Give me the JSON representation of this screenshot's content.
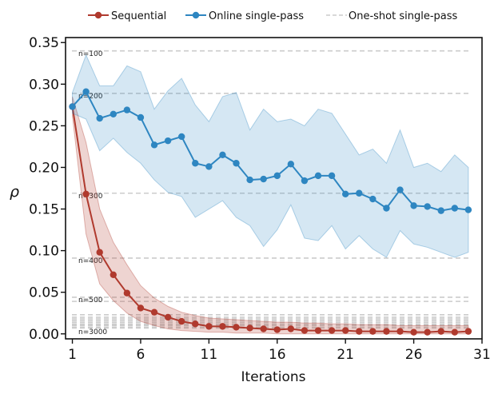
{
  "chart_data": {
    "type": "line",
    "xlabel": "Iterations",
    "ylabel": "ρ",
    "xlim": [
      0.5,
      31
    ],
    "ylim": [
      -0.006,
      0.356
    ],
    "xticks": [
      1,
      6,
      11,
      16,
      21,
      26,
      31
    ],
    "yticks": [
      0.0,
      0.05,
      0.1,
      0.15,
      0.2,
      0.25,
      0.3,
      0.35
    ],
    "ytick_labels": [
      "0.00",
      "0.05",
      "0.10",
      "0.15",
      "0.20",
      "0.25",
      "0.30",
      "0.35"
    ],
    "x": [
      1,
      2,
      3,
      4,
      5,
      6,
      7,
      8,
      9,
      10,
      11,
      12,
      13,
      14,
      15,
      16,
      17,
      18,
      19,
      20,
      21,
      22,
      23,
      24,
      25,
      26,
      27,
      28,
      29,
      30
    ],
    "series": [
      {
        "name": "Sequential",
        "color": "#b03a2e",
        "marker": "circle",
        "values": [
          0.273,
          0.168,
          0.098,
          0.071,
          0.049,
          0.031,
          0.026,
          0.02,
          0.015,
          0.012,
          0.009,
          0.009,
          0.008,
          0.007,
          0.006,
          0.005,
          0.006,
          0.004,
          0.004,
          0.004,
          0.004,
          0.003,
          0.003,
          0.003,
          0.003,
          0.002,
          0.002,
          0.003,
          0.002,
          0.003
        ],
        "upper": [
          0.285,
          0.23,
          0.15,
          0.11,
          0.083,
          0.058,
          0.043,
          0.033,
          0.026,
          0.022,
          0.019,
          0.018,
          0.017,
          0.016,
          0.015,
          0.014,
          0.014,
          0.013,
          0.013,
          0.012,
          0.012,
          0.011,
          0.011,
          0.011,
          0.01,
          0.01,
          0.01,
          0.01,
          0.01,
          0.01
        ],
        "lower": [
          0.262,
          0.12,
          0.06,
          0.04,
          0.025,
          0.015,
          0.01,
          0.006,
          0.004,
          0.003,
          0.002,
          0.002,
          0.001,
          0.001,
          0.001,
          0.0,
          0.0,
          0.0,
          0.0,
          0.0,
          0.0,
          0.0,
          0.0,
          0.0,
          0.0,
          0.0,
          0.0,
          0.0,
          0.0,
          0.0
        ]
      },
      {
        "name": "Online single-pass",
        "color": "#2e86c1",
        "marker": "circle",
        "values": [
          0.273,
          0.291,
          0.259,
          0.264,
          0.269,
          0.26,
          0.227,
          0.232,
          0.237,
          0.205,
          0.201,
          0.215,
          0.205,
          0.185,
          0.186,
          0.19,
          0.204,
          0.184,
          0.19,
          0.19,
          0.168,
          0.169,
          0.162,
          0.151,
          0.173,
          0.154,
          0.153,
          0.148,
          0.151,
          0.149
        ],
        "upper": [
          0.29,
          0.335,
          0.298,
          0.298,
          0.322,
          0.315,
          0.27,
          0.292,
          0.307,
          0.275,
          0.255,
          0.285,
          0.29,
          0.245,
          0.27,
          0.255,
          0.258,
          0.25,
          0.27,
          0.265,
          0.24,
          0.215,
          0.222,
          0.205,
          0.245,
          0.2,
          0.205,
          0.195,
          0.215,
          0.2
        ],
        "lower": [
          0.265,
          0.258,
          0.22,
          0.235,
          0.218,
          0.205,
          0.185,
          0.17,
          0.165,
          0.14,
          0.15,
          0.16,
          0.14,
          0.13,
          0.105,
          0.125,
          0.155,
          0.115,
          0.112,
          0.13,
          0.102,
          0.118,
          0.102,
          0.092,
          0.124,
          0.108,
          0.104,
          0.098,
          0.092,
          0.098
        ]
      }
    ],
    "reference_lines": {
      "name": "One-shot single-pass",
      "color": "#cccccc",
      "style": "dashed",
      "values": [
        0.34,
        0.289,
        0.169,
        0.091,
        0.044,
        0.039,
        0.023,
        0.02,
        0.018,
        0.016,
        0.014,
        0.012,
        0.011,
        0.01,
        0.008,
        0.007
      ],
      "labels": [
        {
          "text": "n=100",
          "y": 0.334
        },
        {
          "text": "n=200",
          "y": 0.283
        },
        {
          "text": "n=300",
          "y": 0.163
        },
        {
          "text": "n=400",
          "y": 0.085
        },
        {
          "text": "n=500",
          "y": 0.038
        },
        {
          "text": "n=3000",
          "y": 0.0
        }
      ]
    },
    "legend": {
      "position": "top",
      "entries": [
        "Sequential",
        "Online single-pass",
        "One-shot single-pass"
      ]
    }
  }
}
